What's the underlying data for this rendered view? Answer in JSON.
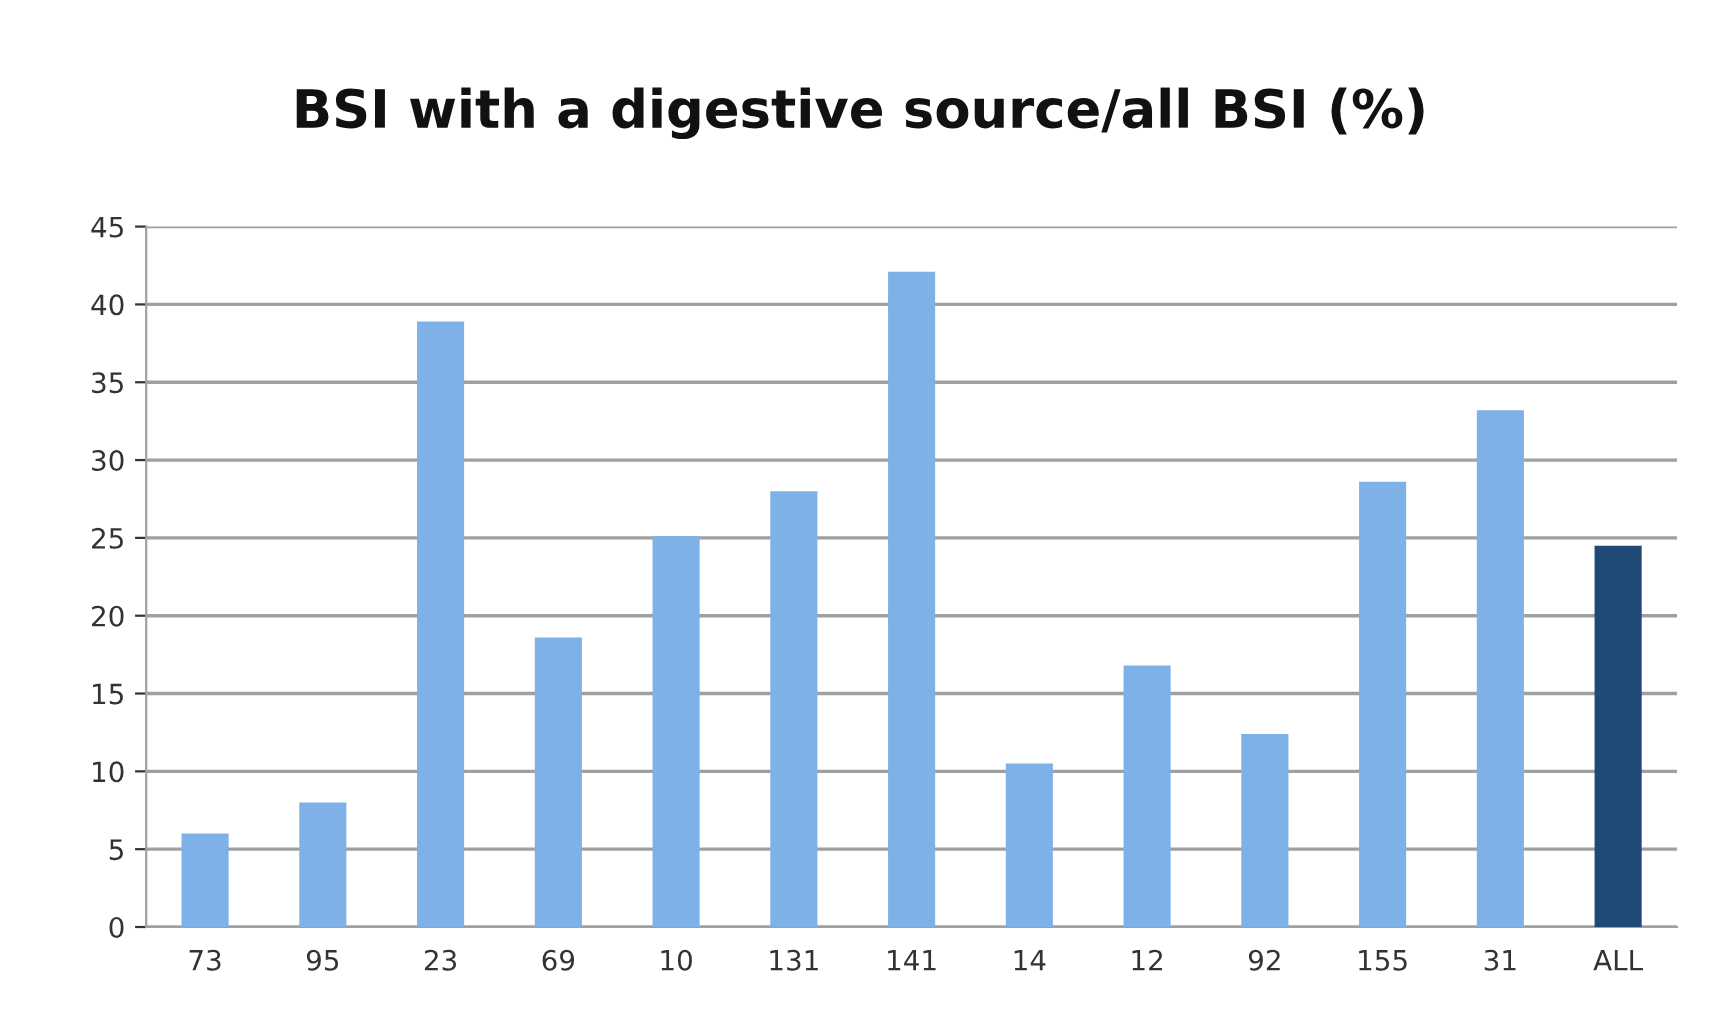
{
  "chart_data": {
    "type": "bar",
    "title": "BSI with a digestive source/all BSI (%)",
    "categories": [
      "73",
      "95",
      "23",
      "69",
      "10",
      "131",
      "141",
      "14",
      "12",
      "92",
      "155",
      "31",
      "ALL"
    ],
    "values": [
      6.0,
      8.0,
      38.9,
      18.6,
      25.1,
      28.0,
      42.1,
      10.5,
      16.8,
      12.4,
      28.6,
      33.2,
      24.5
    ],
    "colors": [
      "#7eb1e8",
      "#7eb1e8",
      "#7eb1e8",
      "#7eb1e8",
      "#7eb1e8",
      "#7eb1e8",
      "#7eb1e8",
      "#7eb1e8",
      "#7eb1e8",
      "#7eb1e8",
      "#7eb1e8",
      "#7eb1e8",
      "#1f4a75"
    ],
    "ylim": [
      0,
      45
    ],
    "yticks": [
      0,
      5,
      10,
      15,
      20,
      25,
      30,
      35,
      40,
      45
    ],
    "grid": "y",
    "legend": false
  }
}
